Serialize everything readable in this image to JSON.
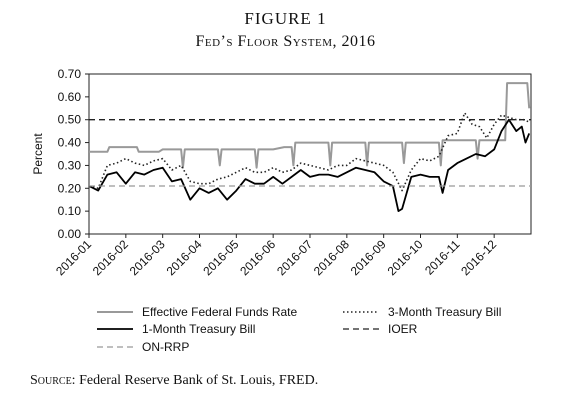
{
  "figure": {
    "label": "FIGURE 1",
    "title": "Fed’s Floor System, 2016",
    "source_prefix": "Source:",
    "source_text": " Federal Reserve Bank of St. Louis, FRED."
  },
  "chart_data": {
    "type": "line",
    "title": "",
    "xlabel": "",
    "ylabel": "Percent",
    "ylim": [
      0,
      0.7
    ],
    "yticks": [
      "0.00",
      "0.10",
      "0.20",
      "0.30",
      "0.40",
      "0.50",
      "0.60",
      "0.70"
    ],
    "xlim": [
      0,
      12
    ],
    "xticks": [
      "2016-01",
      "2016-02",
      "2016-03",
      "2016-04",
      "2016-05",
      "2016-06",
      "2016-07",
      "2016-08",
      "2016-09",
      "2016-10",
      "2016-11",
      "2016-12"
    ],
    "grid": false,
    "legend_position": "bottom",
    "colors": {
      "effr": "#999999",
      "tbill3m": "#222222",
      "tbill1m": "#000000",
      "ioer": "#222222",
      "onrrp": "#999999"
    },
    "series": [
      {
        "key": "effr",
        "name": "Effective Federal Funds Rate",
        "style": "solid-gray",
        "points": [
          [
            0,
            0.36
          ],
          [
            0.2,
            0.36
          ],
          [
            0.5,
            0.36
          ],
          [
            0.55,
            0.38
          ],
          [
            1.0,
            0.38
          ],
          [
            1.3,
            0.38
          ],
          [
            1.35,
            0.36
          ],
          [
            1.9,
            0.36
          ],
          [
            2.0,
            0.37
          ],
          [
            2.5,
            0.37
          ],
          [
            2.55,
            0.29
          ],
          [
            2.6,
            0.37
          ],
          [
            3.0,
            0.37
          ],
          [
            3.5,
            0.37
          ],
          [
            3.55,
            0.3
          ],
          [
            3.6,
            0.37
          ],
          [
            4.0,
            0.37
          ],
          [
            4.5,
            0.37
          ],
          [
            4.55,
            0.29
          ],
          [
            4.6,
            0.37
          ],
          [
            5.0,
            0.37
          ],
          [
            5.3,
            0.38
          ],
          [
            5.5,
            0.38
          ],
          [
            5.55,
            0.3
          ],
          [
            5.6,
            0.4
          ],
          [
            6.0,
            0.4
          ],
          [
            6.5,
            0.4
          ],
          [
            6.55,
            0.3
          ],
          [
            6.6,
            0.4
          ],
          [
            7.0,
            0.4
          ],
          [
            7.5,
            0.4
          ],
          [
            7.55,
            0.3
          ],
          [
            7.6,
            0.4
          ],
          [
            8.0,
            0.4
          ],
          [
            8.5,
            0.4
          ],
          [
            8.55,
            0.31
          ],
          [
            8.6,
            0.4
          ],
          [
            9.0,
            0.4
          ],
          [
            9.5,
            0.4
          ],
          [
            9.55,
            0.3
          ],
          [
            9.6,
            0.41
          ],
          [
            10.5,
            0.41
          ],
          [
            10.55,
            0.33
          ],
          [
            10.6,
            0.41
          ],
          [
            11.0,
            0.41
          ],
          [
            11.3,
            0.41
          ],
          [
            11.35,
            0.66
          ],
          [
            11.9,
            0.66
          ],
          [
            11.95,
            0.55
          ]
        ]
      },
      {
        "key": "tbill3m",
        "name": "3-Month Treasury Bill",
        "style": "dotted",
        "points": [
          [
            0,
            0.21
          ],
          [
            0.25,
            0.2
          ],
          [
            0.5,
            0.3
          ],
          [
            0.75,
            0.31
          ],
          [
            1.0,
            0.33
          ],
          [
            1.25,
            0.31
          ],
          [
            1.5,
            0.3
          ],
          [
            1.75,
            0.32
          ],
          [
            2.0,
            0.33
          ],
          [
            2.25,
            0.28
          ],
          [
            2.5,
            0.3
          ],
          [
            2.75,
            0.23
          ],
          [
            3.0,
            0.22
          ],
          [
            3.25,
            0.22
          ],
          [
            3.5,
            0.24
          ],
          [
            3.75,
            0.25
          ],
          [
            4.0,
            0.27
          ],
          [
            4.25,
            0.29
          ],
          [
            4.5,
            0.27
          ],
          [
            4.75,
            0.27
          ],
          [
            5.0,
            0.29
          ],
          [
            5.25,
            0.27
          ],
          [
            5.5,
            0.28
          ],
          [
            5.75,
            0.31
          ],
          [
            6.0,
            0.3
          ],
          [
            6.25,
            0.29
          ],
          [
            6.5,
            0.28
          ],
          [
            6.75,
            0.3
          ],
          [
            7.0,
            0.3
          ],
          [
            7.25,
            0.33
          ],
          [
            7.5,
            0.32
          ],
          [
            7.75,
            0.31
          ],
          [
            8.0,
            0.3
          ],
          [
            8.25,
            0.27
          ],
          [
            8.5,
            0.19
          ],
          [
            8.75,
            0.28
          ],
          [
            9.0,
            0.33
          ],
          [
            9.25,
            0.32
          ],
          [
            9.5,
            0.34
          ],
          [
            9.75,
            0.43
          ],
          [
            10.0,
            0.44
          ],
          [
            10.2,
            0.53
          ],
          [
            10.4,
            0.48
          ],
          [
            10.6,
            0.47
          ],
          [
            10.8,
            0.42
          ],
          [
            11.0,
            0.48
          ],
          [
            11.2,
            0.52
          ],
          [
            11.4,
            0.51
          ],
          [
            11.6,
            0.5
          ],
          [
            11.8,
            0.5
          ],
          [
            11.95,
            0.49
          ]
        ]
      },
      {
        "key": "tbill1m",
        "name": "1-Month Treasury Bill",
        "style": "solid-black",
        "points": [
          [
            0,
            0.21
          ],
          [
            0.25,
            0.19
          ],
          [
            0.5,
            0.26
          ],
          [
            0.75,
            0.27
          ],
          [
            1.0,
            0.22
          ],
          [
            1.25,
            0.27
          ],
          [
            1.5,
            0.26
          ],
          [
            1.75,
            0.28
          ],
          [
            2.0,
            0.29
          ],
          [
            2.25,
            0.23
          ],
          [
            2.5,
            0.24
          ],
          [
            2.75,
            0.15
          ],
          [
            3.0,
            0.2
          ],
          [
            3.25,
            0.18
          ],
          [
            3.5,
            0.2
          ],
          [
            3.75,
            0.15
          ],
          [
            4.0,
            0.19
          ],
          [
            4.25,
            0.24
          ],
          [
            4.5,
            0.22
          ],
          [
            4.75,
            0.22
          ],
          [
            5.0,
            0.25
          ],
          [
            5.25,
            0.22
          ],
          [
            5.5,
            0.25
          ],
          [
            5.75,
            0.28
          ],
          [
            6.0,
            0.25
          ],
          [
            6.25,
            0.26
          ],
          [
            6.5,
            0.26
          ],
          [
            6.75,
            0.25
          ],
          [
            7.0,
            0.27
          ],
          [
            7.25,
            0.29
          ],
          [
            7.5,
            0.28
          ],
          [
            7.75,
            0.27
          ],
          [
            8.0,
            0.23
          ],
          [
            8.25,
            0.21
          ],
          [
            8.4,
            0.1
          ],
          [
            8.5,
            0.11
          ],
          [
            8.75,
            0.25
          ],
          [
            9.0,
            0.26
          ],
          [
            9.25,
            0.25
          ],
          [
            9.5,
            0.25
          ],
          [
            9.6,
            0.18
          ],
          [
            9.75,
            0.28
          ],
          [
            10.0,
            0.31
          ],
          [
            10.25,
            0.33
          ],
          [
            10.5,
            0.35
          ],
          [
            10.75,
            0.34
          ],
          [
            11.0,
            0.37
          ],
          [
            11.2,
            0.45
          ],
          [
            11.4,
            0.5
          ],
          [
            11.6,
            0.45
          ],
          [
            11.75,
            0.47
          ],
          [
            11.85,
            0.4
          ],
          [
            11.95,
            0.44
          ]
        ]
      },
      {
        "key": "ioer",
        "name": "IOER",
        "style": "dashed-black",
        "points": [
          [
            0,
            0.5
          ],
          [
            12,
            0.5
          ]
        ]
      },
      {
        "key": "onrrp",
        "name": "ON-RRP",
        "style": "dashed-gray",
        "points": [
          [
            0,
            0.21
          ],
          [
            12,
            0.21
          ]
        ]
      }
    ]
  }
}
